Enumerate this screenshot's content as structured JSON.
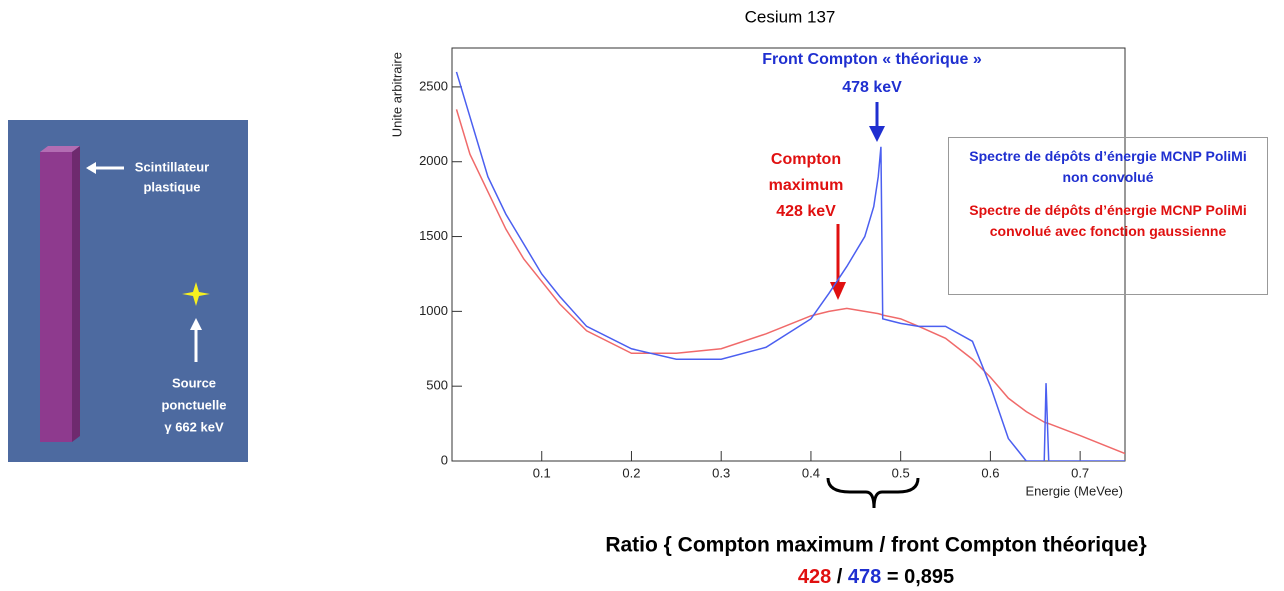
{
  "chart_data": {
    "type": "line",
    "title": "Cesium 137",
    "ylabel": "Unite arbitraire",
    "xlabel": "Energie (MeVee)",
    "xlim": [
      0,
      0.75
    ],
    "xticks": [
      0.1,
      0.2,
      0.3,
      0.4,
      0.5,
      0.6,
      0.7
    ],
    "ylim": [
      0,
      2760
    ],
    "yticks": [
      0,
      500,
      1000,
      1500,
      2000,
      2500
    ],
    "x": [
      0.005,
      0.02,
      0.04,
      0.06,
      0.08,
      0.1,
      0.12,
      0.15,
      0.2,
      0.25,
      0.3,
      0.35,
      0.4,
      0.42,
      0.44,
      0.46,
      0.47,
      0.475,
      0.478,
      0.48,
      0.5,
      0.52,
      0.55,
      0.58,
      0.6,
      0.62,
      0.64,
      0.66,
      0.662,
      0.665,
      0.7,
      0.75
    ],
    "series": [
      {
        "name": "Spectre de  dépôts d’énergie MCNP PoliMi non convolué",
        "color": "#4b5ff0",
        "values": [
          2600,
          2300,
          1900,
          1650,
          1450,
          1250,
          1100,
          900,
          750,
          680,
          680,
          760,
          950,
          1120,
          1300,
          1500,
          1700,
          1900,
          2100,
          950,
          920,
          900,
          900,
          800,
          500,
          150,
          0,
          0,
          520,
          0,
          0,
          0
        ]
      },
      {
        "name": "Spectre de dépôts d’énergie MCNP PoliMi convolué avec fonction gaussienne",
        "color": "#f06a6a",
        "values": [
          2350,
          2050,
          1800,
          1550,
          1350,
          1200,
          1050,
          870,
          720,
          720,
          750,
          850,
          970,
          1000,
          1020,
          1000,
          990,
          985,
          980,
          975,
          950,
          900,
          820,
          680,
          560,
          420,
          330,
          260,
          255,
          250,
          170,
          50
        ]
      }
    ],
    "annotations": [
      {
        "text": "Front Compton « théorique »",
        "color": "#1f2fd0"
      },
      {
        "text": "478  keV",
        "color": "#1f2fd0"
      },
      {
        "text": "Compton",
        "color": "#e01010"
      },
      {
        "text": "maximum",
        "color": "#e01010"
      },
      {
        "text": "428   keV",
        "color": "#e01010"
      }
    ]
  },
  "caption": {
    "line1": "Ratio { Compton maximum / front Compton théorique}",
    "red": "428",
    "slash": "/",
    "blue": "478",
    "result": "= 0,895"
  },
  "diagram": {
    "labels": [
      "Scintillateur",
      "plastique",
      "Source",
      "ponctuelle",
      "γ 662 keV"
    ]
  }
}
